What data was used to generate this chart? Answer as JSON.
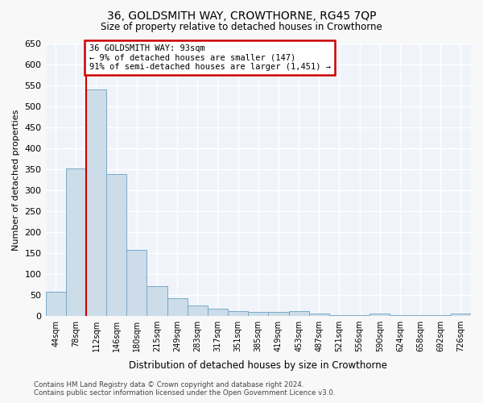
{
  "title": "36, GOLDSMITH WAY, CROWTHORNE, RG45 7QP",
  "subtitle": "Size of property relative to detached houses in Crowthorne",
  "xlabel": "Distribution of detached houses by size in Crowthorne",
  "ylabel": "Number of detached properties",
  "bar_color": "#ccdce8",
  "bar_edge_color": "#7aaac8",
  "categories": [
    "44sqm",
    "78sqm",
    "112sqm",
    "146sqm",
    "180sqm",
    "215sqm",
    "249sqm",
    "283sqm",
    "317sqm",
    "351sqm",
    "385sqm",
    "419sqm",
    "453sqm",
    "487sqm",
    "521sqm",
    "556sqm",
    "590sqm",
    "624sqm",
    "658sqm",
    "692sqm",
    "726sqm"
  ],
  "values": [
    57,
    352,
    540,
    338,
    157,
    70,
    42,
    25,
    17,
    10,
    8,
    8,
    10,
    5,
    1,
    1,
    5,
    1,
    1,
    1,
    5
  ],
  "ylim": [
    0,
    650
  ],
  "yticks": [
    0,
    50,
    100,
    150,
    200,
    250,
    300,
    350,
    400,
    450,
    500,
    550,
    600,
    650
  ],
  "red_line_x": 1.5,
  "annotation_line1": "36 GOLDSMITH WAY: 93sqm",
  "annotation_line2": "← 9% of detached houses are smaller (147)",
  "annotation_line3": "91% of semi-detached houses are larger (1,451) →",
  "annotation_box_color": "#ffffff",
  "annotation_box_edge_color": "#cc0000",
  "footer_line1": "Contains HM Land Registry data © Crown copyright and database right 2024.",
  "footer_line2": "Contains public sector information licensed under the Open Government Licence v3.0.",
  "fig_bg_color": "#f8f8f8",
  "plot_bg_color": "#f0f4fa",
  "grid_color": "#ffffff",
  "fig_width": 6.0,
  "fig_height": 5.0
}
